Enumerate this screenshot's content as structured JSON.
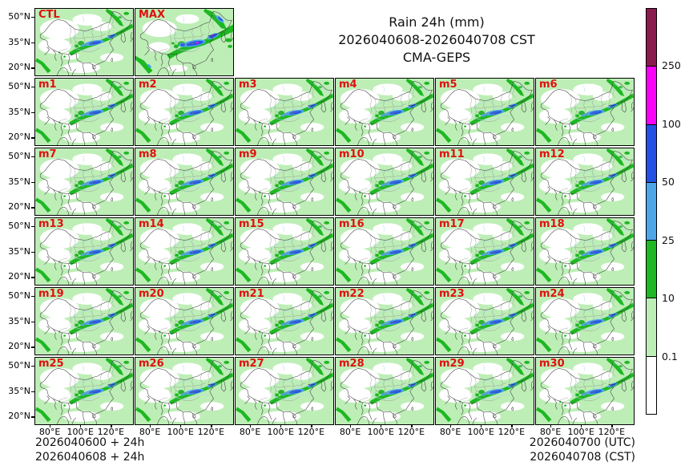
{
  "title": {
    "line1": "Rain 24h (mm)",
    "line2": "2026040608-2026040708 CST",
    "line3": "CMA-GEPS"
  },
  "panels": {
    "top": [
      "CTL",
      "MAX"
    ],
    "members": [
      "m1",
      "m2",
      "m3",
      "m4",
      "m5",
      "m6",
      "m7",
      "m8",
      "m9",
      "m10",
      "m11",
      "m12",
      "m13",
      "m14",
      "m15",
      "m16",
      "m17",
      "m18",
      "m19",
      "m20",
      "m21",
      "m22",
      "m23",
      "m24",
      "m25",
      "m26",
      "m27",
      "m28",
      "m29",
      "m30"
    ]
  },
  "axes": {
    "lat_ticks": [
      "50°N",
      "35°N",
      "20°N"
    ],
    "lon_ticks": [
      "80°E",
      "100°E",
      "120°E"
    ]
  },
  "colorbar": {
    "segment_colors_top_to_bottom": [
      "#8b1a4f",
      "#fa00fa",
      "#2351e5",
      "#4da6ea",
      "#1db822",
      "#bdeeb6",
      "#ffffff"
    ],
    "boundary_labels_top_to_bottom": [
      "250",
      "100",
      "50",
      "25",
      "10",
      "0.1"
    ]
  },
  "footer": {
    "left_line1": "2026040600 + 24h",
    "left_line2": "2026040608 + 24h",
    "right_line1": "2026040700 (UTC)",
    "right_line2": "2026040708 (CST)"
  },
  "colors": {
    "panel_label_red": "#e01010",
    "rain_pale_green": "#bdeeb6",
    "rain_green": "#1db822",
    "rain_light_blue": "#4da6ea",
    "rain_blue": "#2351e5",
    "rain_magenta": "#fa00fa",
    "rain_maroon": "#8b1a4f",
    "river_blue": "#a8d4ee",
    "border_dark": "#3a3a3a",
    "border_province": "#8a8a8a"
  },
  "chart_data": {
    "type": "heatmap",
    "title": "Rain 24h (mm)",
    "period": "2026040608-2026040708 CST",
    "model": "CMA-GEPS",
    "panel_labels": [
      "CTL",
      "MAX",
      "m1",
      "m2",
      "m3",
      "m4",
      "m5",
      "m6",
      "m7",
      "m8",
      "m9",
      "m10",
      "m11",
      "m12",
      "m13",
      "m14",
      "m15",
      "m16",
      "m17",
      "m18",
      "m19",
      "m20",
      "m21",
      "m22",
      "m23",
      "m24",
      "m25",
      "m26",
      "m27",
      "m28",
      "m29",
      "m30"
    ],
    "grid_layout": "row1: CTL, MAX; rows2-6: m1-m30 in 6 columns",
    "x_ticks": [
      "80°E",
      "100°E",
      "120°E"
    ],
    "y_ticks": [
      "50°N",
      "35°N",
      "20°N"
    ],
    "colorbar_levels_mm": [
      0.1,
      10,
      25,
      50,
      100,
      250
    ],
    "colorbar_colors_low_to_high": [
      "#ffffff",
      "#bdeeb6",
      "#1db822",
      "#4da6ea",
      "#2351e5",
      "#fa00fa",
      "#8b1a4f"
    ],
    "init_labels": [
      "2026040600 + 24h",
      "2026040608 + 24h"
    ],
    "valid_labels": [
      "2026040700 (UTC)",
      "2026040708 (CST)"
    ],
    "legend_position": "right",
    "grid": false
  }
}
